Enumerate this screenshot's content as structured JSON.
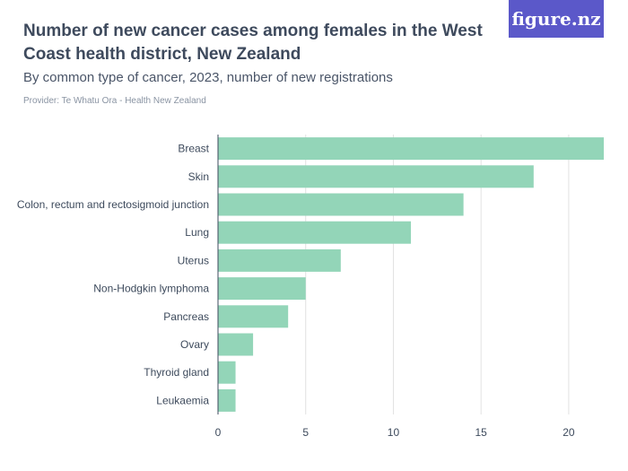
{
  "header": {
    "title": "Number of new cancer cases among females in the West Coast health district, New Zealand",
    "subtitle": "By common type of cancer, 2023, number of new registrations",
    "provider": "Provider: Te Whatu Ora - Health New Zealand",
    "logo": "figure.nz"
  },
  "colors": {
    "bar": "#93d5b8",
    "grid": "#e2e2e2",
    "axis": "#3d4a5c",
    "logo_bg": "#5b58c9"
  },
  "chart_data": {
    "type": "bar",
    "orientation": "horizontal",
    "title": "Number of new cancer cases among females in the West Coast health district, New Zealand",
    "subtitle": "By common type of cancer, 2023, number of new registrations",
    "categories": [
      "Breast",
      "Skin",
      "Colon, rectum and rectosigmoid junction",
      "Lung",
      "Uterus",
      "Non-Hodgkin lymphoma",
      "Pancreas",
      "Ovary",
      "Thyroid gland",
      "Leukaemia"
    ],
    "values": [
      22,
      18,
      14,
      11,
      7,
      5,
      4,
      2,
      1,
      1
    ],
    "xlim": [
      0,
      22
    ],
    "xticks": [
      0,
      5,
      10,
      15,
      20
    ],
    "grid": true,
    "legend": "none"
  }
}
